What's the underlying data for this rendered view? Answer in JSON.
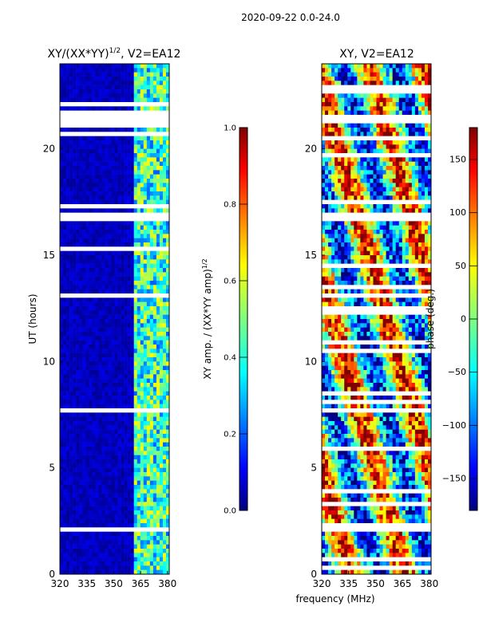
{
  "figure": {
    "suptitle": "2020-09-22 0.0-24.0",
    "shared_xlabel": "frequency (MHz)"
  },
  "colors": {
    "blue_dark": "#00007f",
    "blue": "#0000ff",
    "cyan": "#00ffff",
    "green": "#7fff7f",
    "yellow": "#ffff00",
    "orange": "#ff7f00",
    "red": "#ff0000",
    "red_dark": "#7f0000",
    "gap": "#ffffff"
  },
  "chart_data": [
    {
      "type": "heatmap",
      "title_main": "XY/(XX*YY)",
      "title_sup": "1/2",
      "title_tail": ", V2=EA12",
      "xlabel": "",
      "ylabel": "UT (hours)",
      "xlim": [
        320,
        381
      ],
      "ylim": [
        0,
        24
      ],
      "xticks": [
        "320",
        "335",
        "350",
        "365",
        "380"
      ],
      "yticks": [
        "0",
        "5",
        "10",
        "15",
        "20"
      ],
      "colorbar": {
        "label_main": "XY amp. / (XX*YY amp)",
        "label_sup": "1/2",
        "range": [
          0.0,
          1.0
        ],
        "ticks": [
          "0.0",
          "0.2",
          "0.4",
          "0.6",
          "0.8",
          "1.0"
        ]
      },
      "value_range_MHz": {
        "low_band_level": 0.05,
        "high_band_start": 361,
        "high_band_level": 0.5
      },
      "data_gaps_UT": [
        [
          2.0,
          2.2
        ],
        [
          16.7,
          16.9
        ],
        [
          21.2,
          21.6
        ],
        [
          13.0,
          13.2
        ]
      ]
    },
    {
      "type": "heatmap",
      "title_main": "XY, V2=EA12",
      "xlabel": "frequency (MHz)",
      "ylabel": "",
      "xlim": [
        320,
        381
      ],
      "ylim": [
        0,
        24
      ],
      "xticks": [
        "320",
        "335",
        "350",
        "365",
        "380"
      ],
      "yticks": [
        "0",
        "5",
        "10",
        "15",
        "20"
      ],
      "colorbar": {
        "label": "phase (deg.)",
        "range": [
          -180,
          180
        ],
        "ticks": [
          "-150",
          "-100",
          "-50",
          "0",
          "50",
          "100",
          "150"
        ]
      },
      "data_gaps_UT": [
        [
          2.0,
          2.2
        ],
        [
          16.7,
          16.9
        ],
        [
          21.2,
          21.6
        ],
        [
          13.0,
          13.2
        ]
      ]
    }
  ]
}
